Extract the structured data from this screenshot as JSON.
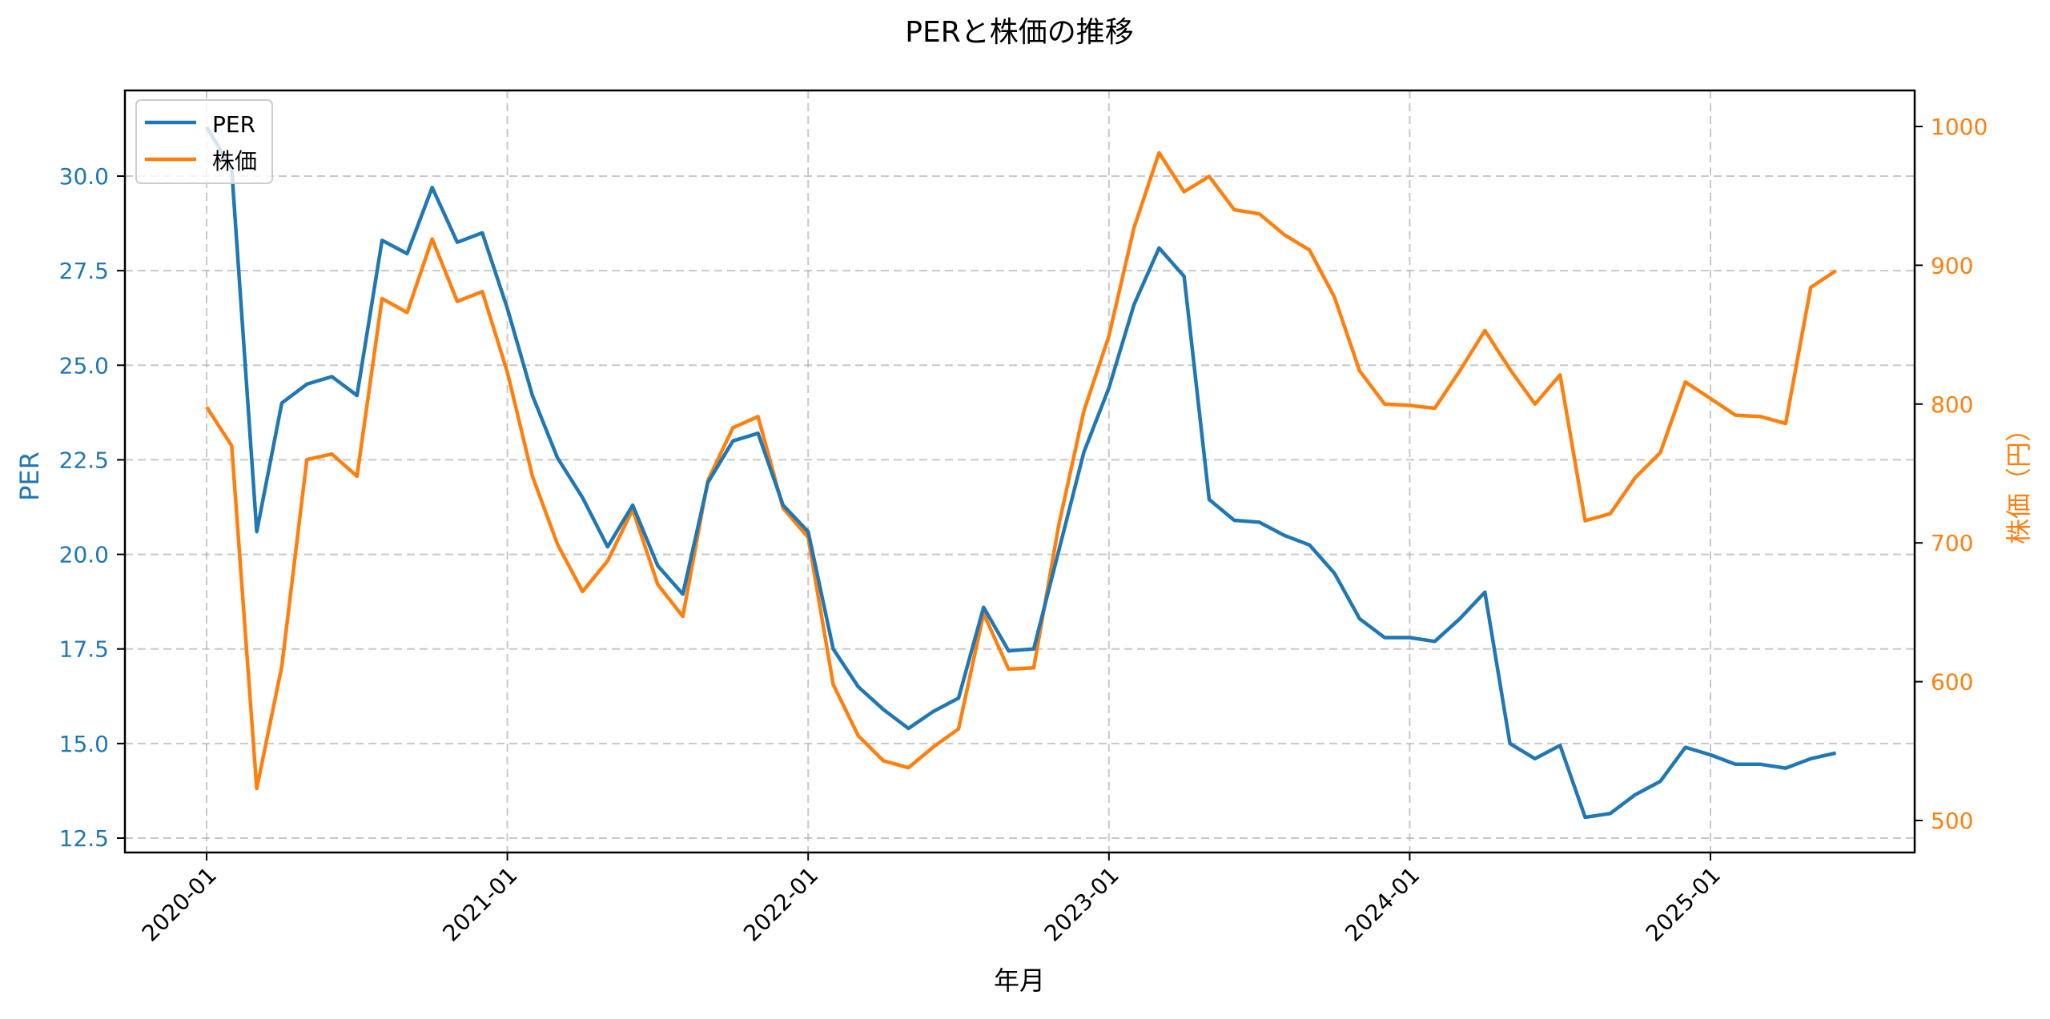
{
  "chart_data": {
    "type": "line",
    "title": "PERと株価の推移",
    "xlabel": "年月",
    "ylabel_left": "PER",
    "ylabel_right": "株価（円）",
    "grid": true,
    "legend_position": "upper left",
    "x": [
      "2020-01",
      "2020-02",
      "2020-03",
      "2020-04",
      "2020-05",
      "2020-06",
      "2020-07",
      "2020-08",
      "2020-09",
      "2020-10",
      "2020-11",
      "2020-12",
      "2021-01",
      "2021-02",
      "2021-03",
      "2021-04",
      "2021-05",
      "2021-06",
      "2021-07",
      "2021-08",
      "2021-09",
      "2021-10",
      "2021-11",
      "2021-12",
      "2022-01",
      "2022-02",
      "2022-03",
      "2022-04",
      "2022-05",
      "2022-06",
      "2022-07",
      "2022-08",
      "2022-09",
      "2022-10",
      "2022-11",
      "2022-12",
      "2023-01",
      "2023-02",
      "2023-03",
      "2023-04",
      "2023-05",
      "2023-06",
      "2023-07",
      "2023-08",
      "2023-09",
      "2023-10",
      "2023-11",
      "2023-12",
      "2024-01",
      "2024-02",
      "2024-03",
      "2024-04",
      "2024-05",
      "2024-06",
      "2024-07",
      "2024-08",
      "2024-09",
      "2024-10",
      "2024-11",
      "2024-12",
      "2025-01",
      "2025-02",
      "2025-03",
      "2025-04",
      "2025-05",
      "2025-06"
    ],
    "xticks": [
      "2020-01",
      "2021-01",
      "2022-01",
      "2023-01",
      "2024-01",
      "2025-01"
    ],
    "yticks_left": [
      "12.5",
      "15.0",
      "17.5",
      "20.0",
      "22.5",
      "25.0",
      "27.5",
      "30.0"
    ],
    "yticks_right": [
      "500",
      "600",
      "700",
      "800",
      "900",
      "1000"
    ],
    "ylim_left": [
      12.1,
      32.3
    ],
    "ylim_right": [
      480,
      1028
    ],
    "series": [
      {
        "name": "PER",
        "axis": "left",
        "color": "#1f77b4",
        "values": [
          31.3,
          30.2,
          20.6,
          24.0,
          24.5,
          24.7,
          24.2,
          28.3,
          27.95,
          29.7,
          28.25,
          28.5,
          26.5,
          24.2,
          22.55,
          21.5,
          20.2,
          21.3,
          19.7,
          18.95,
          21.9,
          23.0,
          23.2,
          21.3,
          20.6,
          17.5,
          16.5,
          15.9,
          15.4,
          15.85,
          16.2,
          18.6,
          17.45,
          17.5,
          20.1,
          22.7,
          24.4,
          26.6,
          28.1,
          27.35,
          21.45,
          20.9,
          20.85,
          20.5,
          20.25,
          19.5,
          18.3,
          17.8,
          17.8,
          17.7,
          18.3,
          19.0,
          15.0,
          14.6,
          14.95,
          13.05,
          13.15,
          13.65,
          14.0,
          14.9,
          14.7,
          14.45,
          14.45,
          14.35,
          14.6,
          14.75
        ]
      },
      {
        "name": "株価",
        "axis": "right",
        "color": "#ff7f0e",
        "values": [
          798,
          770,
          523,
          611,
          760,
          764,
          748,
          876,
          866,
          919,
          874,
          881,
          823,
          748,
          699,
          665,
          687,
          724,
          670,
          647,
          745,
          783,
          791,
          725,
          704,
          598,
          561,
          543,
          538,
          553,
          566,
          649,
          609,
          610,
          713,
          795,
          849,
          927,
          981,
          953,
          964,
          940,
          937,
          922,
          911,
          877,
          824,
          800,
          799,
          797,
          824,
          853,
          825,
          800,
          821,
          716,
          721,
          747,
          765,
          816,
          804,
          792,
          791,
          786,
          884,
          896
        ]
      }
    ]
  },
  "legend": {
    "items": [
      {
        "label": "PER",
        "color": "#1f77b4"
      },
      {
        "label": "株価",
        "color": "#ff7f0e"
      }
    ]
  }
}
